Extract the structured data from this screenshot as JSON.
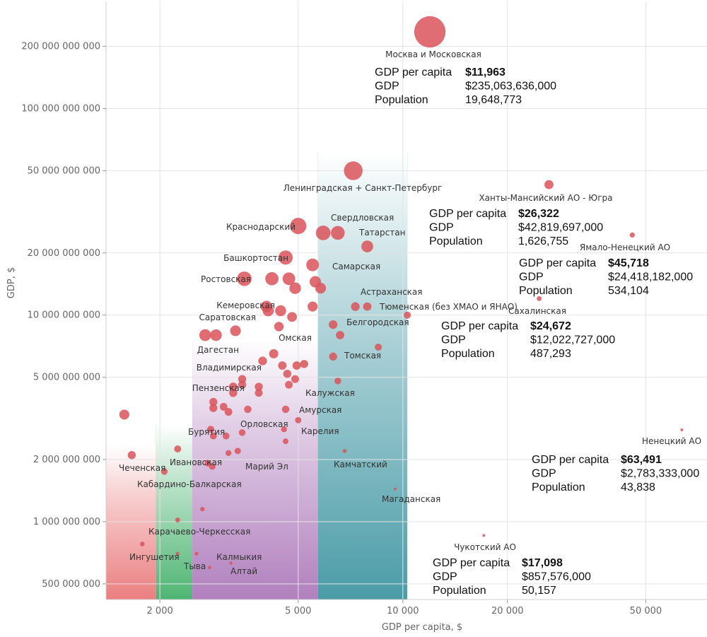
{
  "chart_data": {
    "type": "scatter",
    "xlabel": "GDP per capita, $",
    "ylabel": "GDP, $",
    "x_scale": "log",
    "y_scale": "log",
    "xlim": [
      1400,
      75000
    ],
    "ylim": [
      420000000,
      330000000000
    ],
    "grid": true,
    "x_ticks": [
      {
        "value": 2000,
        "label": "2 000"
      },
      {
        "value": 5000,
        "label": "5 000"
      },
      {
        "value": 10000,
        "label": "10 000"
      },
      {
        "value": 20000,
        "label": "20 000"
      },
      {
        "value": 50000,
        "label": "50 000"
      }
    ],
    "y_ticks": [
      {
        "value": 500000000,
        "label": "500 000 000"
      },
      {
        "value": 1000000000,
        "label": "1 000 000 000"
      },
      {
        "value": 2000000000,
        "label": "2 000 000 000"
      },
      {
        "value": 5000000000,
        "label": "5 000 000 000"
      },
      {
        "value": 10000000000,
        "label": "10 000 000 000"
      },
      {
        "value": 20000000000,
        "label": "20 000 000 000"
      },
      {
        "value": 50000000000,
        "label": "50 000 000 000"
      },
      {
        "value": 100000000000,
        "label": "100 000 000 000"
      },
      {
        "value": 200000000000,
        "label": "200 000 000 000"
      }
    ],
    "bands": [
      {
        "from": 1400,
        "to": 1950,
        "color": "#e8696b"
      },
      {
        "from": 1950,
        "to": 2480,
        "color": "#2fa85a"
      },
      {
        "from": 2480,
        "to": 5700,
        "color": "#a36ab3"
      },
      {
        "from": 5700,
        "to": 10300,
        "color": "#2c8b99"
      }
    ],
    "point_color": "#d9545b",
    "points": [
      {
        "label": "Москва и Московская",
        "x": 11963,
        "y": 235063636000,
        "pop": 19648773
      },
      {
        "label": "Ленинградская + Санкт-Петербург",
        "x": 7200,
        "y": 50000000000,
        "pop": 7000000
      },
      {
        "label": "Ханты-Мансийский АО - Югра",
        "x": 26322,
        "y": 42819697000,
        "pop": 1626755
      },
      {
        "label": "Ямало-Ненецкий АО",
        "x": 45718,
        "y": 24418182000,
        "pop": 534104
      },
      {
        "label": "Сахалинская",
        "x": 24672,
        "y": 12022727000,
        "pop": 487293
      },
      {
        "label": "Ненецкий АО",
        "x": 63491,
        "y": 2783333000,
        "pop": 43838
      },
      {
        "label": "Чукотский АО",
        "x": 17098,
        "y": 857576000,
        "pop": 50157
      },
      {
        "label": "Краснодарский",
        "x": 5000,
        "y": 27000000000,
        "pop": 5300000
      },
      {
        "label": "Свердловская",
        "x": 5900,
        "y": 25000000000,
        "pop": 4300000
      },
      {
        "label": "Татарстан",
        "x": 6500,
        "y": 25000000000,
        "pop": 3800000
      },
      {
        "label": "",
        "x": 7900,
        "y": 21500000000,
        "pop": 2800000
      },
      {
        "label": "Башкортостан",
        "x": 4600,
        "y": 19000000000,
        "pop": 4000000
      },
      {
        "label": "Самарская",
        "x": 5500,
        "y": 17500000000,
        "pop": 3200000
      },
      {
        "label": "Ростовская",
        "x": 3500,
        "y": 15000000000,
        "pop": 4200000
      },
      {
        "label": "",
        "x": 4200,
        "y": 15000000000,
        "pop": 3500000
      },
      {
        "label": "",
        "x": 4700,
        "y": 15000000000,
        "pop": 3200000
      },
      {
        "label": "",
        "x": 5600,
        "y": 14500000000,
        "pop": 2600000
      },
      {
        "label": "",
        "x": 4900,
        "y": 13500000000,
        "pop": 2700000
      },
      {
        "label": "",
        "x": 5800,
        "y": 13500000000,
        "pop": 2300000
      },
      {
        "label": "Кемеровская",
        "x": 4050,
        "y": 11000000000,
        "pop": 2700000
      },
      {
        "label": "",
        "x": 4100,
        "y": 10500000000,
        "pop": 2500000
      },
      {
        "label": "",
        "x": 4450,
        "y": 10500000000,
        "pop": 2400000
      },
      {
        "label": "",
        "x": 5500,
        "y": 11000000000,
        "pop": 2000000
      },
      {
        "label": "Астраханская",
        "x": 7300,
        "y": 11000000000,
        "pop": 1500000
      },
      {
        "label": "Тюменская (без ХМАО и ЯНАО)",
        "x": 7900,
        "y": 11000000000,
        "pop": 1400000
      },
      {
        "label": "",
        "x": 10300,
        "y": 10000000000,
        "pop": 1000000
      },
      {
        "label": "Саратовская",
        "x": 4800,
        "y": 9800000000,
        "pop": 1900000
      },
      {
        "label": "",
        "x": 4400,
        "y": 8800000000,
        "pop": 1800000
      },
      {
        "label": "Белгородская",
        "x": 6300,
        "y": 9000000000,
        "pop": 1500000
      },
      {
        "label": "",
        "x": 6600,
        "y": 8000000000,
        "pop": 1400000
      },
      {
        "label": "",
        "x": 2700,
        "y": 8000000000,
        "pop": 2800000
      },
      {
        "label": "",
        "x": 2900,
        "y": 8000000000,
        "pop": 2700000
      },
      {
        "label": "Омская",
        "x": 3300,
        "y": 8400000000,
        "pop": 2300000
      },
      {
        "label": "",
        "x": 8500,
        "y": 7000000000,
        "pop": 1000000
      },
      {
        "label": "Дагестан",
        "x": 4250,
        "y": 6500000000,
        "pop": 1700000
      },
      {
        "label": "Томская",
        "x": 6300,
        "y": 6300000000,
        "pop": 1300000
      },
      {
        "label": "",
        "x": 3950,
        "y": 6000000000,
        "pop": 1500000
      },
      {
        "label": "",
        "x": 4500,
        "y": 5700000000,
        "pop": 1400000
      },
      {
        "label": "",
        "x": 4950,
        "y": 5700000000,
        "pop": 1400000
      },
      {
        "label": "",
        "x": 5200,
        "y": 5800000000,
        "pop": 1300000
      },
      {
        "label": "Владимирская",
        "x": 4650,
        "y": 5200000000,
        "pop": 1300000
      },
      {
        "label": "",
        "x": 4900,
        "y": 4900000000,
        "pop": 1200000
      },
      {
        "label": "",
        "x": 4700,
        "y": 4600000000,
        "pop": 1200000
      },
      {
        "label": "Калужская",
        "x": 6500,
        "y": 4800000000,
        "pop": 900000
      },
      {
        "label": "",
        "x": 3450,
        "y": 4900000000,
        "pop": 1300000
      },
      {
        "label": "",
        "x": 3450,
        "y": 4600000000,
        "pop": 1300000
      },
      {
        "label": "Пензенская",
        "x": 3250,
        "y": 4500000000,
        "pop": 1400000
      },
      {
        "label": "",
        "x": 3250,
        "y": 4200000000,
        "pop": 1300000
      },
      {
        "label": "",
        "x": 3850,
        "y": 4500000000,
        "pop": 1300000
      },
      {
        "label": "",
        "x": 3850,
        "y": 4200000000,
        "pop": 1200000
      },
      {
        "label": "",
        "x": 2850,
        "y": 3800000000,
        "pop": 1300000
      },
      {
        "label": "",
        "x": 2850,
        "y": 3550000000,
        "pop": 1300000
      },
      {
        "label": "",
        "x": 3050,
        "y": 3600000000,
        "pop": 1200000
      },
      {
        "label": "Амурская",
        "x": 3150,
        "y": 3400000000,
        "pop": 1200000
      },
      {
        "label": "",
        "x": 3580,
        "y": 3500000000,
        "pop": 1100000
      },
      {
        "label": "",
        "x": 4600,
        "y": 3500000000,
        "pop": 1100000
      },
      {
        "label": "Орловская",
        "x": 5000,
        "y": 3100000000,
        "pop": 800000
      },
      {
        "label": "",
        "x": 2800,
        "y": 2800000000,
        "pop": 1000000
      },
      {
        "label": "",
        "x": 3450,
        "y": 2700000000,
        "pop": 900000
      },
      {
        "label": "",
        "x": 2850,
        "y": 2600000000,
        "pop": 950000
      },
      {
        "label": "",
        "x": 3100,
        "y": 2600000000,
        "pop": 950000
      },
      {
        "label": "Карелия",
        "x": 4550,
        "y": 2800000000,
        "pop": 700000
      },
      {
        "label": "",
        "x": 4600,
        "y": 2450000000,
        "pop": 650000
      },
      {
        "label": "Марий Эл",
        "x": 3350,
        "y": 2200000000,
        "pop": 800000
      },
      {
        "label": "",
        "x": 3150,
        "y": 2150000000,
        "pop": 700000
      },
      {
        "label": "Камчатский",
        "x": 6800,
        "y": 2200000000,
        "pop": 320000
      },
      {
        "label": "",
        "x": 1580,
        "y": 3300000000,
        "pop": 2000000
      },
      {
        "label": "Чеченская",
        "x": 1660,
        "y": 2100000000,
        "pop": 1300000
      },
      {
        "label": "Бурятия",
        "x": 2250,
        "y": 2250000000,
        "pop": 1000000
      },
      {
        "label": "Ивановская",
        "x": 2750,
        "y": 1920000000,
        "pop": 900000
      },
      {
        "label": "",
        "x": 2830,
        "y": 1850000000,
        "pop": 850000
      },
      {
        "label": "Кабардино-Балкарская",
        "x": 2060,
        "y": 1750000000,
        "pop": 900000
      },
      {
        "label": "Магаданская",
        "x": 9500,
        "y": 1440000000,
        "pop": 150000
      },
      {
        "label": "",
        "x": 2650,
        "y": 1150000000,
        "pop": 400000
      },
      {
        "label": "Карачаево-Черкесская",
        "x": 2250,
        "y": 1020000000,
        "pop": 470000
      },
      {
        "label": "Ингушетия",
        "x": 1780,
        "y": 780000000,
        "pop": 450000
      },
      {
        "label": "Тыва",
        "x": 2250,
        "y": 700000000,
        "pop": 310000
      },
      {
        "label": "Калмыкия",
        "x": 2550,
        "y": 700000000,
        "pop": 280000
      },
      {
        "label": "Алтай",
        "x": 2780,
        "y": 600000000,
        "pop": 210000
      },
      {
        "label": "",
        "x": 3200,
        "y": 630000000,
        "pop": 200000
      }
    ],
    "info_boxes": [
      {
        "rows": [
          {
            "key": "GDP per capita",
            "value": "$11,963",
            "bold": true
          },
          {
            "key": "GDP",
            "value": "$235,063,636,000"
          },
          {
            "key": "Population",
            "value": "19,648,773"
          }
        ]
      },
      {
        "rows": [
          {
            "key": "GDP per capita",
            "value": "$26,322",
            "bold": true
          },
          {
            "key": "GDP",
            "value": "$42,819,697,000"
          },
          {
            "key": "Population",
            "value": "1,626,755"
          }
        ]
      },
      {
        "rows": [
          {
            "key": "GDP per capita",
            "value": "$45,718",
            "bold": true
          },
          {
            "key": "GDP",
            "value": "$24,418,182,000"
          },
          {
            "key": "Population",
            "value": "534,104"
          }
        ]
      },
      {
        "rows": [
          {
            "key": "GDP per capita",
            "value": "$24,672",
            "bold": true
          },
          {
            "key": "GDP",
            "value": "$12,022,727,000"
          },
          {
            "key": "Population",
            "value": "487,293"
          }
        ]
      },
      {
        "rows": [
          {
            "key": "GDP per capita",
            "value": "$63,491",
            "bold": true
          },
          {
            "key": "GDP",
            "value": "$2,783,333,000"
          },
          {
            "key": "Population",
            "value": "43,838"
          }
        ]
      },
      {
        "rows": [
          {
            "key": "GDP per capita",
            "value": "$17,098",
            "bold": true
          },
          {
            "key": "GDP",
            "value": "$857,576,000"
          },
          {
            "key": "Population",
            "value": "50,157"
          }
        ]
      }
    ]
  }
}
